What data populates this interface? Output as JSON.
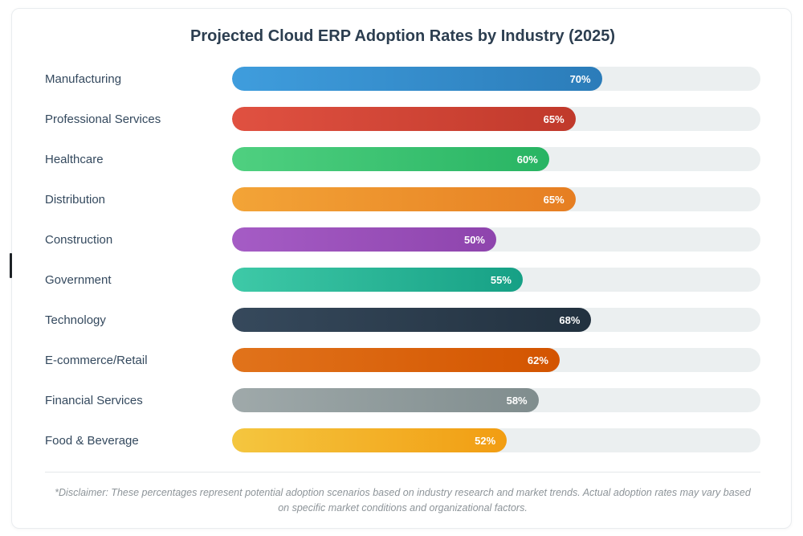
{
  "chart": {
    "title": "Projected Cloud ERP Adoption Rates by Industry (2025)",
    "disclaimer": "*Disclaimer: These percentages represent potential adoption scenarios based on industry research and market trends. Actual adoption rates may vary based on specific market conditions and organizational factors."
  },
  "chart_data": {
    "type": "bar",
    "orientation": "horizontal",
    "title": "Projected Cloud ERP Adoption Rates by Industry (2025)",
    "categories": [
      "Manufacturing",
      "Professional Services",
      "Healthcare",
      "Distribution",
      "Construction",
      "Government",
      "Technology",
      "E-commerce/Retail",
      "Financial Services",
      "Food & Beverage"
    ],
    "values": [
      70,
      65,
      60,
      65,
      50,
      55,
      68,
      62,
      58,
      52
    ],
    "value_labels": [
      "70%",
      "65%",
      "60%",
      "65%",
      "50%",
      "55%",
      "68%",
      "62%",
      "58%",
      "52%"
    ],
    "xlim": [
      0,
      100
    ],
    "grid": false,
    "legend": false,
    "track_color": "#ebeff0",
    "bar_colors": [
      {
        "name": "blue",
        "start": "#3f9ddd",
        "end": "#2b7cb9"
      },
      {
        "name": "red",
        "start": "#e05141",
        "end": "#c0392b"
      },
      {
        "name": "green",
        "start": "#4fd080",
        "end": "#28b463"
      },
      {
        "name": "orange",
        "start": "#f3a437",
        "end": "#e67e22"
      },
      {
        "name": "purple",
        "start": "#a55cc5",
        "end": "#8e44ad"
      },
      {
        "name": "teal",
        "start": "#3ec9a7",
        "end": "#16a085"
      },
      {
        "name": "navy",
        "start": "#36495c",
        "end": "#22313f"
      },
      {
        "name": "dark-orange",
        "start": "#e1731b",
        "end": "#d35400"
      },
      {
        "name": "gray",
        "start": "#9fa9aa",
        "end": "#808d8e"
      },
      {
        "name": "yellow",
        "start": "#f4c63f",
        "end": "#f29d12"
      }
    ],
    "annotations": [
      "*Disclaimer: These percentages represent potential adoption scenarios based on industry research and market trends. Actual adoption rates may vary based on specific market conditions and organizational factors."
    ]
  }
}
